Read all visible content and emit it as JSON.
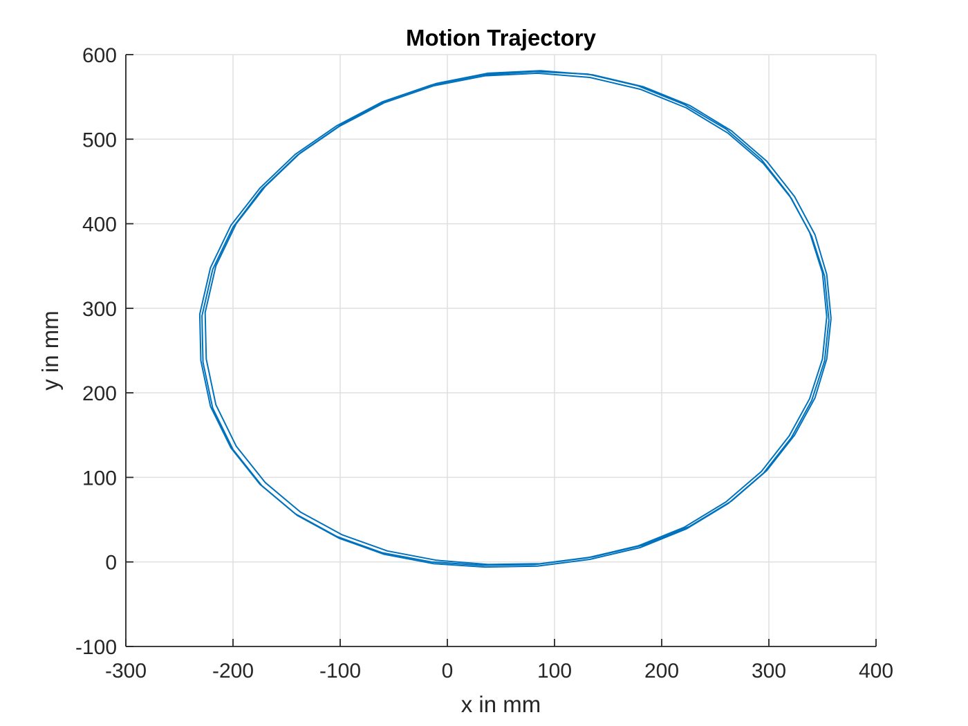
{
  "chart_data": {
    "type": "line",
    "title": "Motion Trajectory",
    "xlabel": "x in mm",
    "ylabel": "y in mm",
    "xlim": [
      -300,
      400
    ],
    "ylim": [
      -100,
      600
    ],
    "xticks": [
      -300,
      -200,
      -100,
      0,
      100,
      200,
      300,
      400
    ],
    "yticks": [
      -100,
      0,
      100,
      200,
      300,
      400,
      500,
      600
    ],
    "xtick_labels": [
      "-300",
      "-200",
      "-100",
      "0",
      "100",
      "200",
      "300",
      "400"
    ],
    "ytick_labels": [
      "-100",
      "0",
      "100",
      "200",
      "300",
      "400",
      "500",
      "600"
    ],
    "grid": true,
    "series_color": "#0072BD",
    "series": [
      {
        "x": [
          358,
          354,
          343,
          324,
          298,
          265,
          226,
          183,
          136,
          87,
          38,
          -10,
          -56,
          -98,
          -137,
          -170,
          -197,
          -216,
          -226,
          -225,
          -216,
          -197,
          -170,
          -137,
          -98,
          -56,
          -10,
          38,
          87,
          136,
          183,
          226,
          265,
          298,
          324,
          343,
          354,
          358
        ],
        "y": [
          288,
          340,
          387,
          432,
          474,
          510,
          540,
          562,
          576,
          581,
          578,
          566,
          546,
          518,
          484,
          444,
          400,
          350,
          295,
          240,
          186,
          137,
          94,
          59,
          32,
          13,
          2,
          -3,
          -2,
          6,
          20,
          42,
          72,
          108,
          150,
          194,
          240,
          288
        ]
      },
      {
        "x": [
          356,
          352,
          340,
          321,
          295,
          262,
          223,
          180,
          133,
          84,
          35,
          -13,
          -59,
          -101,
          -140,
          -173,
          -200,
          -219,
          -229,
          -228,
          -219,
          -200,
          -173,
          -140,
          -101,
          -59,
          -13,
          35,
          84,
          133,
          180,
          223,
          262,
          295,
          321,
          340,
          352,
          356
        ],
        "y": [
          286,
          338,
          385,
          430,
          471,
          507,
          537,
          559,
          573,
          578,
          575,
          563,
          543,
          515,
          481,
          441,
          396,
          346,
          291,
          236,
          182,
          133,
          90,
          55,
          28,
          9,
          -2,
          -6,
          -5,
          3,
          17,
          39,
          69,
          105,
          147,
          191,
          238,
          286
        ]
      },
      {
        "x": [
          354,
          350,
          338,
          319,
          293,
          260,
          221,
          178,
          131,
          82,
          33,
          -15,
          -61,
          -103,
          -142,
          -175,
          -202,
          -221,
          -231,
          -230,
          -221,
          -202,
          -175,
          -142,
          -103,
          -61,
          -15,
          33,
          82,
          131,
          178,
          221,
          260,
          293,
          319,
          338,
          350,
          354
        ],
        "y": [
          290,
          342,
          390,
          434,
          476,
          512,
          541,
          563,
          577,
          580,
          576,
          564,
          544,
          516,
          482,
          442,
          398,
          348,
          293,
          238,
          184,
          135,
          92,
          57,
          30,
          11,
          0,
          -4,
          -3,
          5,
          19,
          41,
          71,
          107,
          149,
          193,
          240,
          290
        ]
      }
    ]
  }
}
